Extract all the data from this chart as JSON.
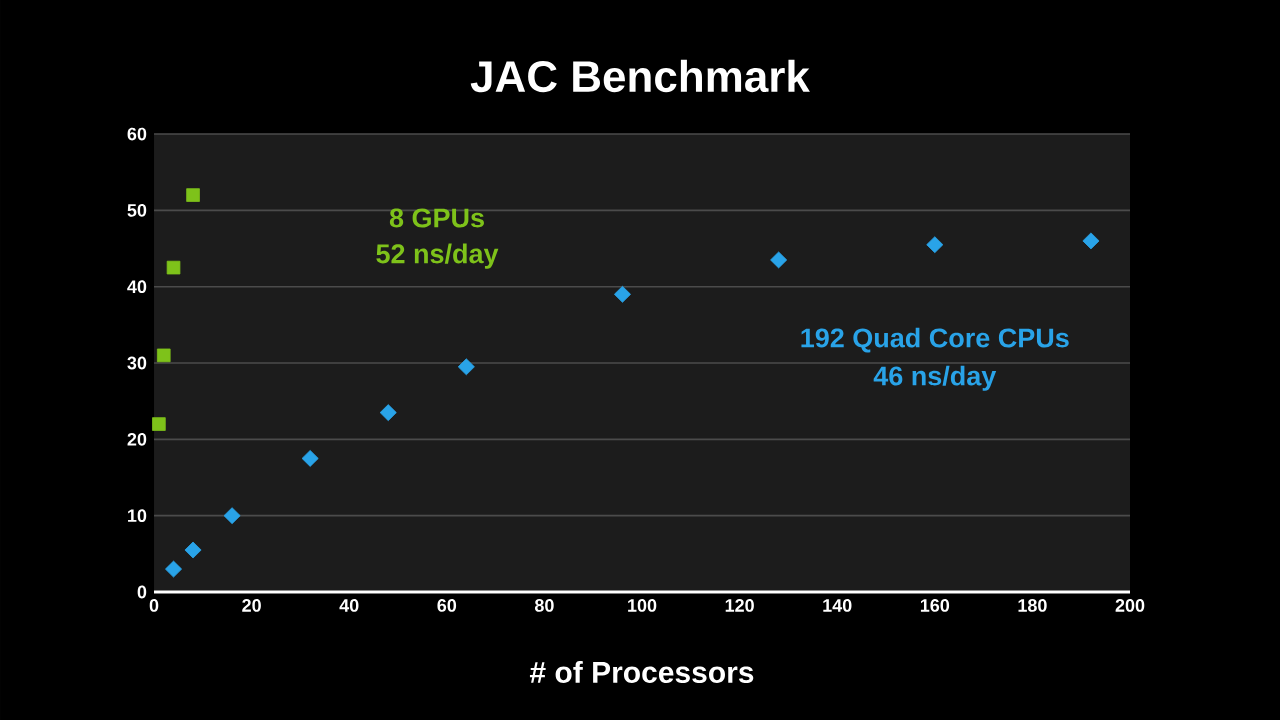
{
  "chart_data": {
    "type": "scatter",
    "title": "JAC Benchmark",
    "xlabel": "# of Processors",
    "xlim": [
      0,
      200
    ],
    "xticks": [
      0,
      20,
      40,
      60,
      80,
      100,
      120,
      140,
      160,
      180,
      200
    ],
    "ylim": [
      0,
      60
    ],
    "yticks": [
      0,
      10,
      20,
      30,
      40,
      50,
      60
    ],
    "grid": "y",
    "series": [
      {
        "color": "#7ec21a",
        "marker": "square",
        "x": [
          1,
          2,
          4,
          8
        ],
        "values": [
          22,
          31,
          42.5,
          52
        ]
      },
      {
        "color": "#29a3e8",
        "marker": "diamond",
        "x": [
          4,
          8,
          16,
          32,
          48,
          64,
          96,
          128,
          160,
          192
        ],
        "values": [
          3,
          5.5,
          10,
          17.5,
          23.5,
          29.5,
          39,
          43.5,
          45.5,
          46
        ]
      }
    ],
    "annotations": [
      "8 GPUs",
      "52 ns/day",
      "192 Quad Core CPUs",
      "46 ns/day"
    ]
  }
}
